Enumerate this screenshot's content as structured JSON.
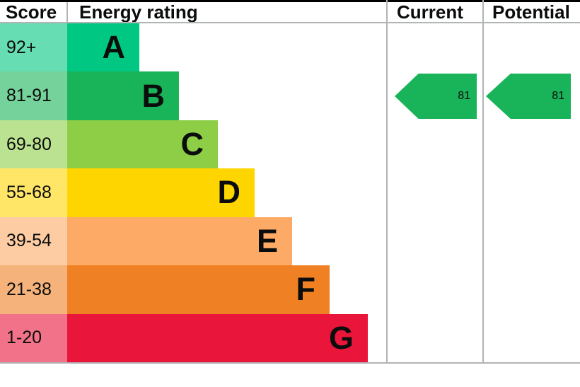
{
  "header": {
    "score": "Score",
    "energy_rating": "Energy rating",
    "current": "Current",
    "potential": "Potential"
  },
  "bands": [
    {
      "letter": "A",
      "score_range": "92+",
      "color": "#00c781",
      "tint": "#66ddb3"
    },
    {
      "letter": "B",
      "score_range": "81-91",
      "color": "#19b459",
      "tint": "#75d29b"
    },
    {
      "letter": "C",
      "score_range": "69-80",
      "color": "#8dce46",
      "tint": "#bbe290"
    },
    {
      "letter": "D",
      "score_range": "55-68",
      "color": "#ffd500",
      "tint": "#ffe666"
    },
    {
      "letter": "E",
      "score_range": "39-54",
      "color": "#fcaa65",
      "tint": "#fdcca3"
    },
    {
      "letter": "F",
      "score_range": "21-38",
      "color": "#ef8023",
      "tint": "#f5b37b"
    },
    {
      "letter": "G",
      "score_range": "1-20",
      "color": "#e9153b",
      "tint": "#f27389"
    }
  ],
  "current": {
    "value": "81",
    "band": "B",
    "arrow_color": "#19b459"
  },
  "potential": {
    "value": "81",
    "band": "B",
    "arrow_color": "#19b459"
  },
  "grid_color": "#b1b4b6",
  "border_color": "#000000",
  "chart_data": {
    "type": "bar",
    "title": "Energy rating",
    "categories": [
      "A",
      "B",
      "C",
      "D",
      "E",
      "F",
      "G"
    ],
    "score_ranges": [
      "92+",
      "81-91",
      "69-80",
      "55-68",
      "39-54",
      "21-38",
      "1-20"
    ],
    "band_colors": [
      "#00c781",
      "#19b459",
      "#8dce46",
      "#ffd500",
      "#fcaa65",
      "#ef8023",
      "#e9153b"
    ],
    "current_rating": {
      "value": 81,
      "band": "B"
    },
    "potential_rating": {
      "value": 81,
      "band": "B"
    },
    "value_range": [
      1,
      100
    ],
    "legend_position": "none",
    "grid": false
  }
}
